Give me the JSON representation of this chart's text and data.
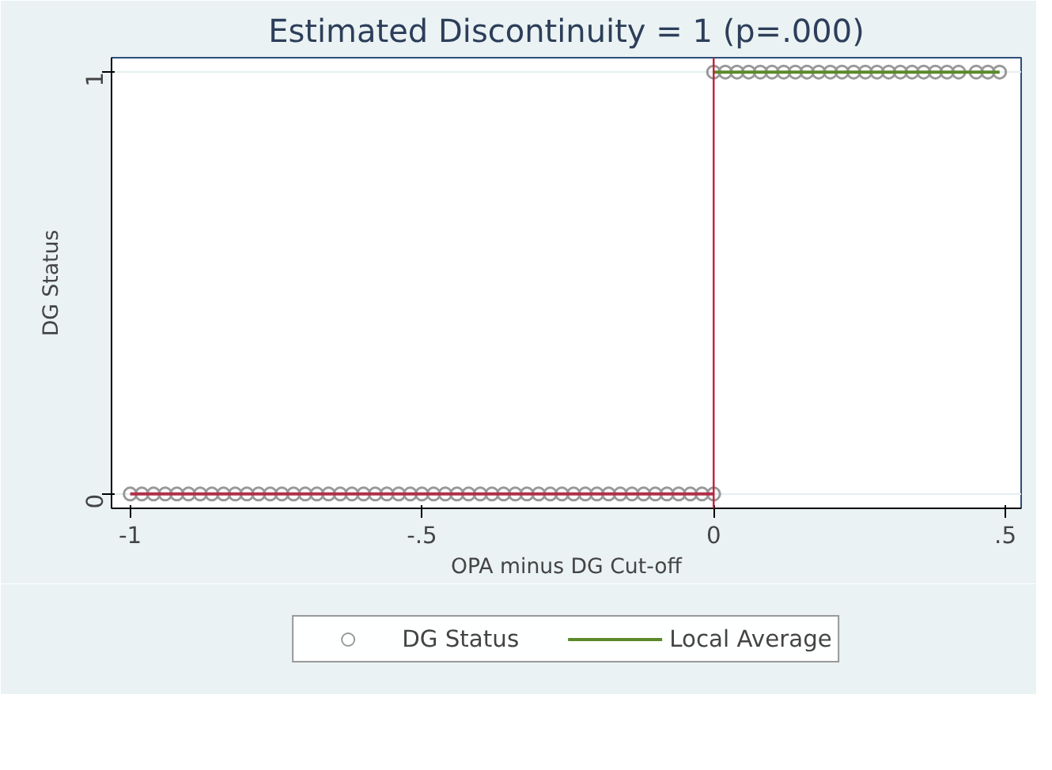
{
  "chart_data": {
    "type": "scatter",
    "title": "Estimated Discontinuity = 1 (p=.000)",
    "xlabel": "OPA minus DG Cut-off",
    "ylabel": "DG Status",
    "xlim": [
      -1.032,
      0.527
    ],
    "xticks": [
      -1,
      {
        "value": -0.5,
        "label": "-.5"
      },
      0,
      {
        "value": 0.5,
        "label": ".5"
      }
    ],
    "ylim": [
      -0.034,
      1.034
    ],
    "yticks": [
      0,
      1
    ],
    "grid": "y",
    "legend": "bottom",
    "ref_lines": [
      {
        "axis": "x",
        "value": 0,
        "color": "#c0203c"
      }
    ],
    "series": [
      {
        "name": "DG Status",
        "marker": "circle",
        "color": "#999999",
        "x": [
          -1,
          -0.98,
          -0.96,
          -0.94,
          -0.92,
          -0.9,
          -0.88,
          -0.86,
          -0.84,
          -0.82,
          -0.8,
          -0.78,
          -0.76,
          -0.74,
          -0.72,
          -0.7,
          -0.68,
          -0.66,
          -0.64,
          -0.62,
          -0.6,
          -0.58,
          -0.56,
          -0.54,
          -0.52,
          -0.5,
          -0.48,
          -0.46,
          -0.44,
          -0.42,
          -0.4,
          -0.38,
          -0.36,
          -0.34,
          -0.32,
          -0.3,
          -0.28,
          -0.26,
          -0.24,
          -0.22,
          -0.2,
          -0.18,
          -0.16,
          -0.14,
          -0.12,
          -0.1,
          -0.08,
          -0.06,
          -0.04,
          -0.02,
          0,
          0,
          0.02,
          0.04,
          0.06,
          0.08,
          0.1,
          0.12,
          0.14,
          0.16,
          0.18,
          0.2,
          0.22,
          0.24,
          0.26,
          0.28,
          0.3,
          0.32,
          0.34,
          0.36,
          0.38,
          0.4,
          0.42,
          0.45,
          0.47,
          0.49
        ],
        "values": [
          0,
          0,
          0,
          0,
          0,
          0,
          0,
          0,
          0,
          0,
          0,
          0,
          0,
          0,
          0,
          0,
          0,
          0,
          0,
          0,
          0,
          0,
          0,
          0,
          0,
          0,
          0,
          0,
          0,
          0,
          0,
          0,
          0,
          0,
          0,
          0,
          0,
          0,
          0,
          0,
          0,
          0,
          0,
          0,
          0,
          0,
          0,
          0,
          0,
          0,
          0,
          1,
          1,
          1,
          1,
          1,
          1,
          1,
          1,
          1,
          1,
          1,
          1,
          1,
          1,
          1,
          1,
          1,
          1,
          1,
          1,
          1,
          1,
          1,
          1,
          1
        ]
      },
      {
        "name": "Local Average",
        "type": "line",
        "color": "#5a8a2a",
        "x": [
          0,
          0.49
        ],
        "values": [
          1,
          1
        ]
      },
      {
        "type": "line",
        "color": "#b0304a",
        "x": [
          -1,
          0
        ],
        "values": [
          0,
          0
        ]
      }
    ]
  }
}
